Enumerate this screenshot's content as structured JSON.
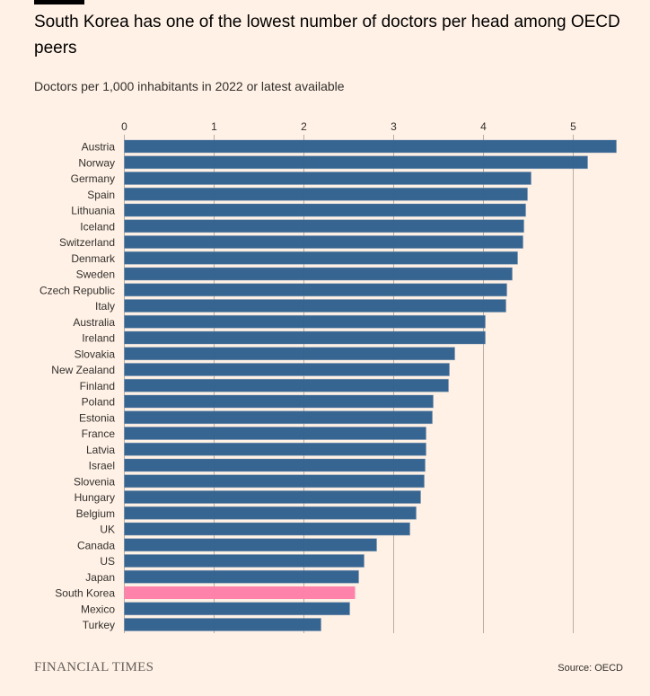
{
  "header": {
    "title": "South Korea has one of the lowest number of doctors per head among OECD peers",
    "subtitle": "Doctors per 1,000 inhabitants in 2022 or latest available"
  },
  "footer": {
    "logo": "FINANCIAL TIMES",
    "source": "Source: OECD"
  },
  "colors": {
    "bar": "#33628f",
    "highlight": "#ff7fa8",
    "background": "#fff1e5",
    "grid": "#b8aea6"
  },
  "chart_data": {
    "type": "bar",
    "orientation": "horizontal",
    "xlim": [
      0,
      5.5
    ],
    "ticks": [
      0,
      1,
      2,
      3,
      4,
      5
    ],
    "grid": true,
    "xaxis_position": "top",
    "categories": [
      "Austria",
      "Norway",
      "Germany",
      "Spain",
      "Lithuania",
      "Iceland",
      "Switzerland",
      "Denmark",
      "Sweden",
      "Czech Republic",
      "Italy",
      "Australia",
      "Ireland",
      "Slovakia",
      "New Zealand",
      "Finland",
      "Poland",
      "Estonia",
      "France",
      "Latvia",
      "Israel",
      "Slovenia",
      "Hungary",
      "Belgium",
      "UK",
      "Canada",
      "US",
      "Japan",
      "South Korea",
      "Mexico",
      "Turkey"
    ],
    "values": [
      5.48,
      5.16,
      4.53,
      4.49,
      4.47,
      4.45,
      4.44,
      4.38,
      4.32,
      4.26,
      4.25,
      4.02,
      4.02,
      3.68,
      3.62,
      3.61,
      3.44,
      3.43,
      3.36,
      3.36,
      3.35,
      3.34,
      3.3,
      3.25,
      3.18,
      2.81,
      2.67,
      2.61,
      2.57,
      2.51,
      2.19
    ],
    "highlight": "South Korea"
  }
}
